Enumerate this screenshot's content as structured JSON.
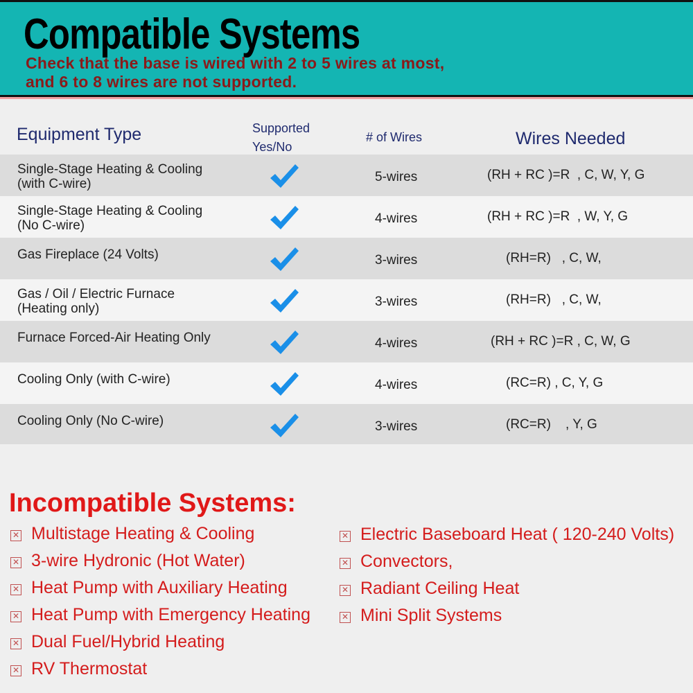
{
  "banner": {
    "title": "Compatible Systems",
    "subtitle_line1": "Check that the base is wired with 2 to 5 wires at most,",
    "subtitle_line2": "and 6 to 8 wires are not supported.",
    "color": "#14b5b3"
  },
  "table": {
    "headers": {
      "equipment": "Equipment Type",
      "supported_line1": "Supported",
      "supported_line2": "Yes/No",
      "wires": "# of Wires",
      "needed": "Wires Needed"
    },
    "rows": [
      {
        "line1": "Single-Stage Heating & Cooling",
        "line2": "(with C-wire)",
        "supported": true,
        "wires": "5-wires",
        "needed": "(RH + RC )=R  , C, W, Y, G"
      },
      {
        "line1": "Single-Stage Heating & Cooling",
        "line2": "(No C-wire)",
        "supported": true,
        "wires": "4-wires",
        "needed": "(RH + RC )=R  , W, Y, G"
      },
      {
        "line1": "Gas Fireplace (24 Volts)",
        "line2": "",
        "supported": true,
        "wires": "3-wires",
        "needed": "(RH=R)   , C, W,"
      },
      {
        "line1": "Gas / Oil / Electric Furnace",
        "line2": "(Heating only)",
        "supported": true,
        "wires": "3-wires",
        "needed": "(RH=R)   , C, W,"
      },
      {
        "line1": "Furnace Forced-Air Heating Only",
        "line2": "",
        "supported": true,
        "wires": "4-wires",
        "needed": "(RH + RC )=R , C, W, G"
      },
      {
        "line1": "Cooling Only (with C-wire)",
        "line2": "",
        "supported": true,
        "wires": "4-wires",
        "needed": "(RC=R) , C, Y, G"
      },
      {
        "line1": "Cooling Only (No C-wire)",
        "line2": "",
        "supported": true,
        "wires": "3-wires",
        "needed": "(RC=R)    , Y, G"
      }
    ],
    "check_color": "#1a8fe8"
  },
  "incompatible": {
    "title": "Incompatible Systems:",
    "left": [
      "Multistage Heating & Cooling",
      "3-wire Hydronic (Hot Water)",
      "Heat Pump with Auxiliary Heating",
      "Heat Pump with Emergency Heating",
      "Dual Fuel/Hybrid Heating",
      "RV Thermostat"
    ],
    "right": [
      "Electric Baseboard Heat ( 120-240 Volts)",
      "Convectors,",
      "Radiant Ceiling Heat",
      "Mini Split Systems"
    ],
    "color": "#e01818"
  }
}
